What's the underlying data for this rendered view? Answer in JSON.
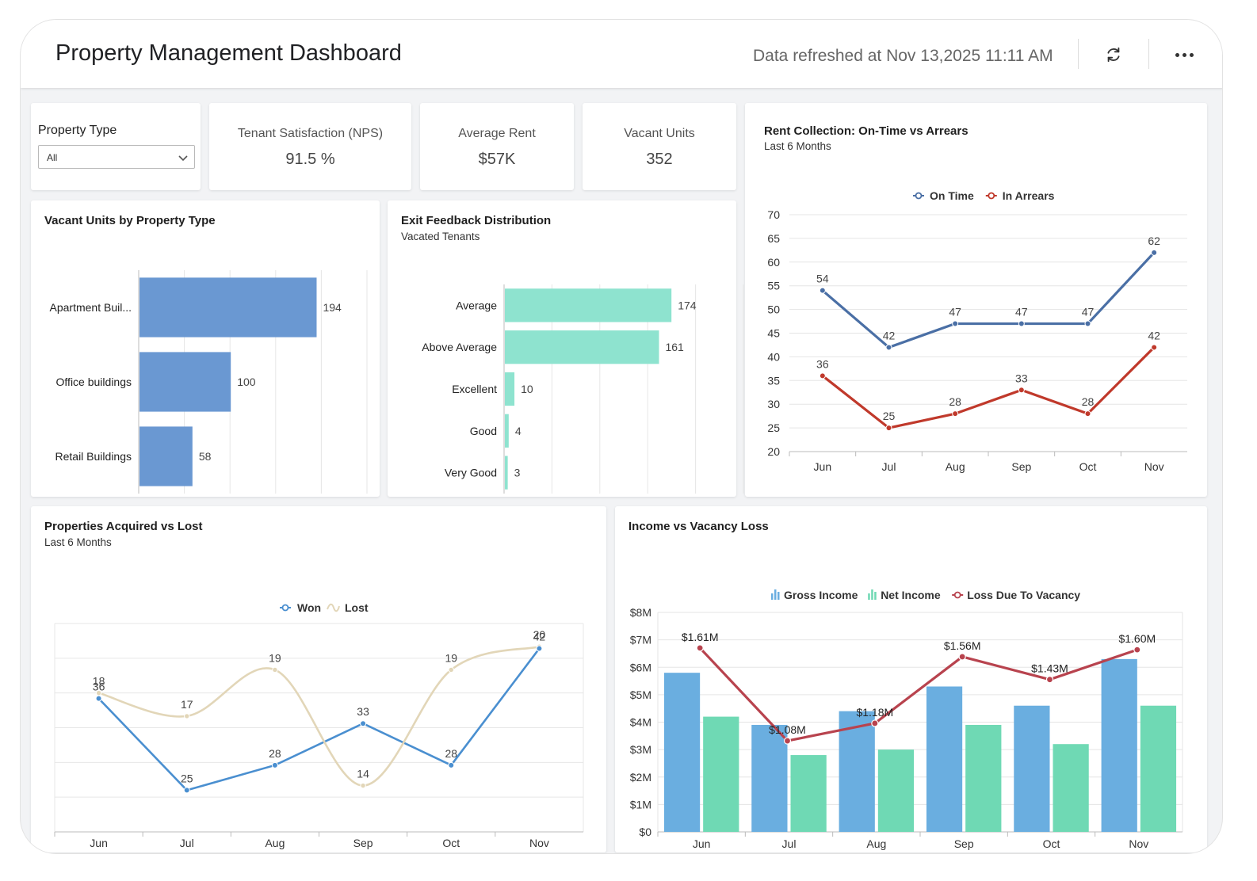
{
  "header": {
    "title": "Property Management Dashboard",
    "refreshed": "Data refreshed at Nov 13,2025 11:11 AM",
    "refresh_icon": "refresh-icon",
    "more_icon": "more-horizontal-icon"
  },
  "filter": {
    "label": "Property Type",
    "value": "All"
  },
  "kpis": [
    {
      "label": "Tenant Satisfaction (NPS)",
      "value": "91.5 %"
    },
    {
      "label": "Average Rent",
      "value": "$57K"
    },
    {
      "label": "Vacant Units",
      "value": "352"
    }
  ],
  "colors": {
    "blue_bar": "#6a98d2",
    "teal_bar": "#8ee3cf",
    "on_time": "#4a6fa5",
    "in_arrears": "#c0392b",
    "won": "#4a8fd0",
    "lost": "#e2d6b8",
    "gross": "#6aaee0",
    "net": "#6fd9b4",
    "loss": "#b8434e"
  },
  "vacant_by_type": {
    "title": "Vacant Units by Property Type",
    "chart_data": {
      "type": "bar",
      "orientation": "horizontal",
      "categories": [
        "Apartment Buil...",
        "Office buildings",
        "Retail Buildings"
      ],
      "values": [
        194,
        100,
        58
      ],
      "xlim": [
        0,
        250
      ],
      "grid": true
    }
  },
  "exit_feedback": {
    "title": "Exit Feedback Distribution",
    "subtitle": "Vacated Tenants",
    "chart_data": {
      "type": "bar",
      "orientation": "horizontal",
      "categories": [
        "Average",
        "Above Average",
        "Excellent",
        "Good",
        "Very Good"
      ],
      "values": [
        174,
        161,
        10,
        4,
        3
      ],
      "xlim": [
        0,
        250
      ],
      "grid": true
    }
  },
  "rent_collection": {
    "title": "Rent Collection: On-Time vs Arrears",
    "subtitle": "Last 6 Months",
    "chart_data": {
      "type": "line",
      "categories": [
        "Jun",
        "Jul",
        "Aug",
        "Sep",
        "Oct",
        "Nov"
      ],
      "series": [
        {
          "name": "On Time",
          "values": [
            54,
            42,
            47,
            47,
            47,
            62
          ]
        },
        {
          "name": "In Arrears",
          "values": [
            36,
            25,
            28,
            33,
            28,
            42
          ]
        }
      ],
      "ylim": [
        20,
        70
      ],
      "yticks": [
        20,
        25,
        30,
        35,
        40,
        45,
        50,
        55,
        60,
        65,
        70
      ],
      "legend": "top",
      "grid": true
    }
  },
  "acquired_lost": {
    "title": "Properties Acquired vs Lost",
    "subtitle": "Last 6 Months",
    "chart_data": {
      "type": "line",
      "categories": [
        "Jun",
        "Jul",
        "Aug",
        "Sep",
        "Oct",
        "Nov"
      ],
      "series": [
        {
          "name": "Won",
          "values": [
            36,
            25,
            28,
            33,
            28,
            42
          ]
        },
        {
          "name": "Lost",
          "values": [
            18,
            17,
            19,
            14,
            19,
            20
          ]
        }
      ],
      "legend": "top",
      "grid": true
    }
  },
  "income_vacancy": {
    "title": "Income vs Vacancy Loss",
    "chart_data": {
      "type": "bar",
      "categories": [
        "Jun",
        "Jul",
        "Aug",
        "Sep",
        "Oct",
        "Nov"
      ],
      "series": [
        {
          "name": "Gross Income",
          "kind": "bar",
          "values": [
            5.8,
            3.9,
            4.4,
            5.3,
            4.6,
            6.3
          ]
        },
        {
          "name": "Net Income",
          "kind": "bar",
          "values": [
            4.2,
            2.8,
            3.0,
            3.9,
            3.2,
            4.6
          ]
        },
        {
          "name": "Loss Due To Vacancy",
          "kind": "line",
          "values": [
            1.61,
            1.08,
            1.18,
            1.56,
            1.43,
            1.6
          ],
          "labels": [
            "$1.61M",
            "$1.08M",
            "$1.18M",
            "$1.56M",
            "$1.43M",
            "$1.60M"
          ]
        }
      ],
      "yticks": [
        "$0",
        "$1M",
        "$2M",
        "$3M",
        "$4M",
        "$5M",
        "$6M",
        "$7M",
        "$8M"
      ],
      "ylim": [
        0,
        8
      ],
      "legend": "top",
      "grid": true
    }
  }
}
